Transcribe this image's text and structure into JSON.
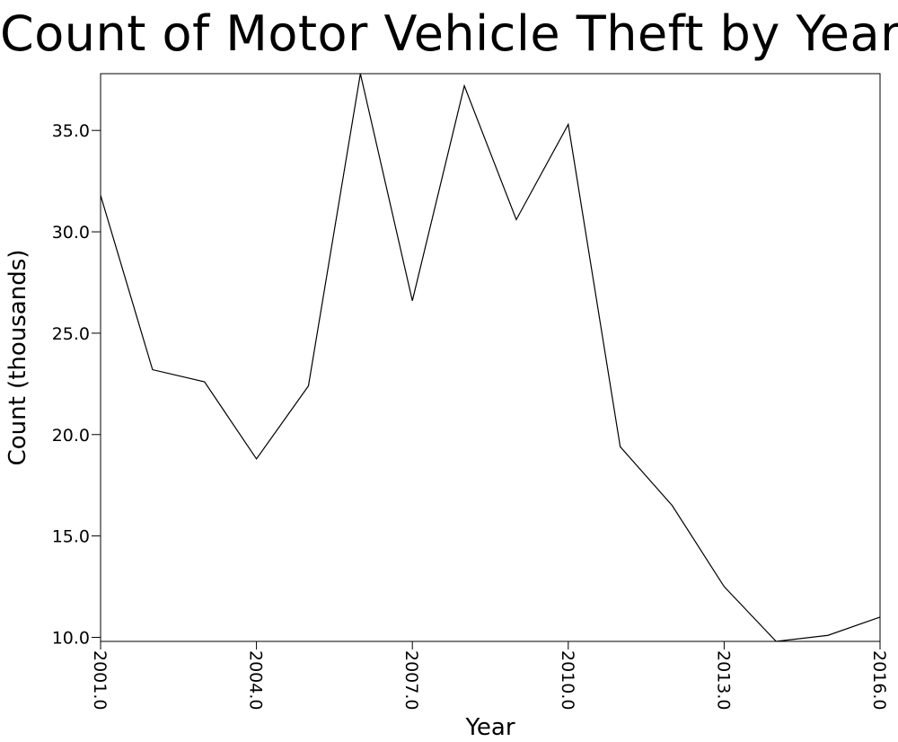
{
  "chart_data": {
    "type": "line",
    "title": "Count of Motor Vehicle Theft by Year",
    "xlabel": "Year",
    "ylabel": "Count (thousands)",
    "xlim": [
      2001,
      2016
    ],
    "ylim": [
      9.8,
      37.8
    ],
    "x_ticks": [
      2001,
      2004,
      2007,
      2010,
      2013,
      2016
    ],
    "x_tick_labels": [
      "2001.0",
      "2004.0",
      "2007.0",
      "2010.0",
      "2013.0",
      "2016.0"
    ],
    "y_ticks": [
      10,
      15,
      20,
      25,
      30,
      35
    ],
    "y_tick_labels": [
      "10.0",
      "15.0",
      "20.0",
      "25.0",
      "30.0",
      "35.0"
    ],
    "grid": false,
    "legend": "none",
    "series": [
      {
        "color": "#000000",
        "x": [
          2001,
          2002,
          2003,
          2004,
          2005,
          2006,
          2007,
          2008,
          2009,
          2010,
          2011,
          2012,
          2013,
          2014,
          2015,
          2016
        ],
        "y": [
          31.8,
          23.2,
          22.6,
          18.8,
          22.4,
          37.8,
          26.6,
          37.2,
          30.6,
          35.3,
          19.4,
          16.5,
          12.5,
          9.8,
          10.1,
          11.0
        ]
      }
    ]
  }
}
